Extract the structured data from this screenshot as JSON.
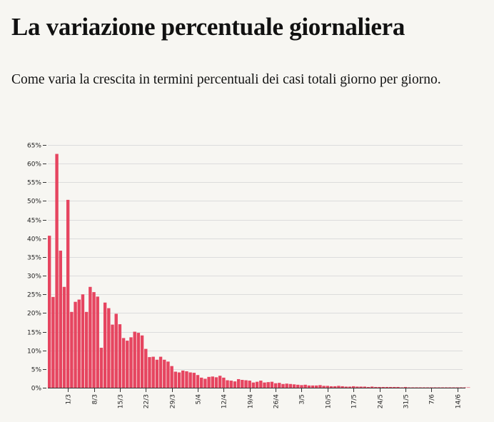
{
  "header": {
    "title": "La variazione percentuale giornaliera",
    "subtitle": "Come varia la crescita in termini percentuali dei casi totali giorno per giorno."
  },
  "colors": {
    "bar": "#e64560",
    "grid": "#dcdcdc",
    "axis": "#333333"
  },
  "chart_data": {
    "type": "bar",
    "title": "",
    "xlabel": "",
    "ylabel": "",
    "ylim": [
      0,
      65
    ],
    "grid": true,
    "y_ticks": [
      "0%",
      "5%",
      "10%",
      "15%",
      "20%",
      "25%",
      "30%",
      "35%",
      "40%",
      "45%",
      "50%",
      "55%",
      "60%",
      "65%"
    ],
    "x_tick_labels": [
      "1/3",
      "8/3",
      "15/3",
      "22/3",
      "29/3",
      "5/4",
      "12/4",
      "19/4",
      "26/4",
      "3/5",
      "10/5",
      "17/5",
      "24/5",
      "31/5",
      "7/6",
      "14/6"
    ],
    "x_tick_bar_index": [
      5,
      12,
      19,
      26,
      33,
      40,
      47,
      54,
      61,
      68,
      75,
      82,
      89,
      96,
      103,
      110
    ],
    "values": [
      40.7,
      24.3,
      62.6,
      36.7,
      27.0,
      50.3,
      20.3,
      23.0,
      23.6,
      25.0,
      20.3,
      27.0,
      25.6,
      24.4,
      10.7,
      22.8,
      21.3,
      16.9,
      19.8,
      17.0,
      13.3,
      12.6,
      13.5,
      15.0,
      14.7,
      14.0,
      10.4,
      8.2,
      8.3,
      7.5,
      8.3,
      7.5,
      7.0,
      5.8,
      4.3,
      4.1,
      4.6,
      4.4,
      4.1,
      4.0,
      3.4,
      2.7,
      2.4,
      2.9,
      3.0,
      2.8,
      3.2,
      2.7,
      2.0,
      1.9,
      1.7,
      2.3,
      2.1,
      2.0,
      1.9,
      1.4,
      1.6,
      1.9,
      1.4,
      1.5,
      1.6,
      1.2,
      1.3,
      1.0,
      1.1,
      1.0,
      0.9,
      0.8,
      0.7,
      0.8,
      0.6,
      0.6,
      0.6,
      0.7,
      0.5,
      0.5,
      0.4,
      0.4,
      0.5,
      0.4,
      0.3,
      0.3,
      0.4,
      0.3,
      0.3,
      0.3,
      0.2,
      0.3,
      0.2,
      0.2,
      0.2,
      0.2,
      0.2,
      0.2,
      0.2,
      0.1,
      0.2,
      0.1,
      0.1,
      0.1,
      0.1,
      0.1,
      0.1,
      0.1,
      0.1,
      0.1,
      0.1,
      0.1,
      0.1,
      0.1,
      0.1,
      0.1,
      0.1,
      0.1
    ]
  }
}
